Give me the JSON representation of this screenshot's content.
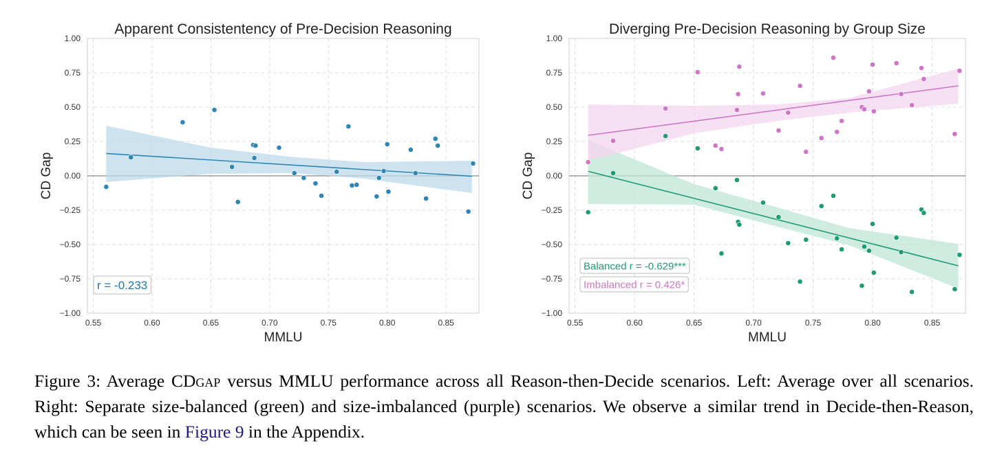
{
  "chart_data": [
    {
      "type": "scatter",
      "title": "Apparent Consistentency of Pre-Decision Reasoning",
      "xlabel": "MMLU",
      "ylabel": "CD Gap",
      "xlim": [
        0.545,
        0.878
      ],
      "ylim": [
        -1.0,
        1.0
      ],
      "xticks": [
        "0.55",
        "0.60",
        "0.65",
        "0.70",
        "0.75",
        "0.80",
        "0.85"
      ],
      "yticks": [
        "1.00",
        "0.75",
        "0.50",
        "0.25",
        "0.00",
        "−0.25",
        "−0.50",
        "−0.75",
        "−1.00"
      ],
      "grid": true,
      "series": [
        {
          "color": "#2f86b3",
          "points": [
            [
              0.561,
              -0.08
            ],
            [
              0.582,
              0.135
            ],
            [
              0.626,
              0.39
            ],
            [
              0.653,
              0.48
            ],
            [
              0.668,
              0.065
            ],
            [
              0.673,
              -0.19
            ],
            [
              0.686,
              0.225
            ],
            [
              0.687,
              0.13
            ],
            [
              0.688,
              0.22
            ],
            [
              0.708,
              0.205
            ],
            [
              0.721,
              0.02
            ],
            [
              0.729,
              -0.015
            ],
            [
              0.739,
              -0.055
            ],
            [
              0.744,
              -0.145
            ],
            [
              0.757,
              0.03
            ],
            [
              0.767,
              0.36
            ],
            [
              0.77,
              -0.07
            ],
            [
              0.774,
              -0.065
            ],
            [
              0.791,
              -0.15
            ],
            [
              0.793,
              -0.015
            ],
            [
              0.797,
              0.035
            ],
            [
              0.8,
              0.23
            ],
            [
              0.801,
              -0.115
            ],
            [
              0.82,
              0.19
            ],
            [
              0.824,
              0.02
            ],
            [
              0.833,
              -0.165
            ],
            [
              0.841,
              0.27
            ],
            [
              0.843,
              0.22
            ],
            [
              0.869,
              -0.26
            ],
            [
              0.873,
              0.09
            ]
          ],
          "fit": {
            "x": [
              0.561,
              0.872
            ],
            "y": [
              0.163,
              -0.003
            ]
          },
          "band_color": "#bcd9ea",
          "band": {
            "x": [
              0.561,
              0.65,
              0.72,
              0.78,
              0.872
            ],
            "upper": [
              0.365,
              0.205,
              0.137,
              0.1,
              0.11
            ],
            "lower": [
              -0.045,
              0.015,
              0.02,
              -0.02,
              -0.125
            ]
          }
        }
      ],
      "annotations": [
        {
          "text": "r = -0.233",
          "color": "#1f77b4"
        }
      ]
    },
    {
      "type": "scatter",
      "title": "Diverging Pre-Decision Reasoning by Group Size",
      "xlabel": "MMLU",
      "ylabel": "CD Gap",
      "xlim": [
        0.545,
        0.878
      ],
      "ylim": [
        -1.0,
        1.0
      ],
      "xticks": [
        "0.55",
        "0.60",
        "0.65",
        "0.70",
        "0.75",
        "0.80",
        "0.85"
      ],
      "yticks": [
        "1.00",
        "0.75",
        "0.50",
        "0.25",
        "0.00",
        "−0.25",
        "−0.50",
        "−0.75",
        "−1.00"
      ],
      "grid": true,
      "series": [
        {
          "color": "#1f9b72",
          "points": [
            [
              0.561,
              -0.265
            ],
            [
              0.582,
              0.02
            ],
            [
              0.626,
              0.29
            ],
            [
              0.653,
              0.2
            ],
            [
              0.668,
              -0.09
            ],
            [
              0.673,
              -0.565
            ],
            [
              0.686,
              -0.03
            ],
            [
              0.687,
              -0.335
            ],
            [
              0.688,
              -0.355
            ],
            [
              0.708,
              -0.195
            ],
            [
              0.721,
              -0.3
            ],
            [
              0.729,
              -0.49
            ],
            [
              0.739,
              -0.77
            ],
            [
              0.744,
              -0.465
            ],
            [
              0.757,
              -0.22
            ],
            [
              0.767,
              -0.145
            ],
            [
              0.77,
              -0.455
            ],
            [
              0.774,
              -0.535
            ],
            [
              0.791,
              -0.8
            ],
            [
              0.793,
              -0.515
            ],
            [
              0.797,
              -0.545
            ],
            [
              0.8,
              -0.35
            ],
            [
              0.801,
              -0.705
            ],
            [
              0.82,
              -0.45
            ],
            [
              0.824,
              -0.555
            ],
            [
              0.833,
              -0.845
            ],
            [
              0.841,
              -0.245
            ],
            [
              0.843,
              -0.27
            ],
            [
              0.869,
              -0.825
            ],
            [
              0.873,
              -0.575
            ]
          ],
          "fit": {
            "x": [
              0.561,
              0.872
            ],
            "y": [
              0.033,
              -0.655
            ]
          },
          "band_color": "#bfe5d5",
          "band": {
            "x": [
              0.561,
              0.65,
              0.72,
              0.78,
              0.872
            ],
            "upper": [
              0.26,
              -0.06,
              -0.23,
              -0.38,
              -0.495
            ],
            "lower": [
              -0.205,
              -0.21,
              -0.37,
              -0.505,
              -0.82
            ]
          }
        },
        {
          "color": "#cc77c4",
          "points": [
            [
              0.561,
              0.1
            ],
            [
              0.582,
              0.255
            ],
            [
              0.626,
              0.49
            ],
            [
              0.653,
              0.755
            ],
            [
              0.668,
              0.22
            ],
            [
              0.673,
              0.195
            ],
            [
              0.686,
              0.48
            ],
            [
              0.687,
              0.595
            ],
            [
              0.688,
              0.795
            ],
            [
              0.708,
              0.6
            ],
            [
              0.721,
              0.33
            ],
            [
              0.729,
              0.46
            ],
            [
              0.739,
              0.655
            ],
            [
              0.744,
              0.175
            ],
            [
              0.757,
              0.275
            ],
            [
              0.767,
              0.86
            ],
            [
              0.77,
              0.32
            ],
            [
              0.774,
              0.4
            ],
            [
              0.791,
              0.5
            ],
            [
              0.793,
              0.485
            ],
            [
              0.797,
              0.615
            ],
            [
              0.8,
              0.81
            ],
            [
              0.801,
              0.47
            ],
            [
              0.82,
              0.82
            ],
            [
              0.824,
              0.595
            ],
            [
              0.833,
              0.515
            ],
            [
              0.841,
              0.785
            ],
            [
              0.843,
              0.705
            ],
            [
              0.869,
              0.305
            ],
            [
              0.873,
              0.765
            ]
          ],
          "fit": {
            "x": [
              0.561,
              0.872
            ],
            "y": [
              0.295,
              0.655
            ]
          },
          "band_color": "#f4d5ef",
          "band": {
            "x": [
              0.561,
              0.65,
              0.72,
              0.78,
              0.872
            ],
            "upper": [
              0.52,
              0.51,
              0.52,
              0.565,
              0.78
            ],
            "lower": [
              0.11,
              0.31,
              0.4,
              0.46,
              0.525
            ]
          }
        }
      ],
      "annotations": [
        {
          "text": "Balanced r = -0.629***",
          "color": "#1f9b72"
        },
        {
          "text": "Imbalanced r = 0.426*",
          "color": "#cc77c4"
        }
      ]
    }
  ],
  "caption": {
    "lead": "Figure 3: Average CD",
    "sc": "gap",
    "rest": " versus MMLU performance across all Reason-then-Decide scenarios. Left: Average over all scenarios. Right: Separate size-balanced (green) and size-imbalanced (purple) scenarios. We observe a similar trend in Decide-then-Reason, which can be seen in ",
    "link": "Figure 9",
    "tail": " in the Appendix."
  }
}
